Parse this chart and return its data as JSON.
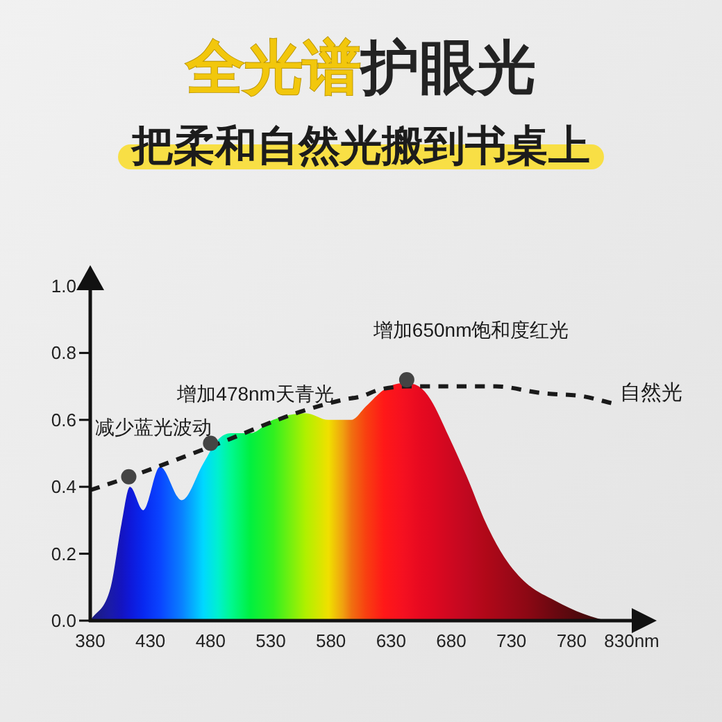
{
  "chart_data": {
    "type": "area",
    "title": "全光谱护眼光",
    "subtitle": "把柔和自然光搬到书桌上",
    "xlim": [
      380,
      830
    ],
    "xticks": [
      380,
      430,
      480,
      530,
      580,
      630,
      680,
      730,
      780,
      {
        "value": 830,
        "label": "830nm"
      }
    ],
    "ylim": [
      0,
      1
    ],
    "yticks": [
      {
        "value": 0,
        "label": "0.0"
      },
      0.2,
      0.4,
      0.6,
      0.8,
      {
        "value": 1,
        "label": "1.0"
      }
    ],
    "grid": false,
    "legend": false,
    "series": [
      {
        "x": [
          380,
          397,
          406,
          413,
          424,
          438,
          456,
          474,
          486,
          497,
          513,
          532,
          559,
          578,
          590,
          597,
          609,
          624,
          640,
          653,
          663,
          678,
          693,
          709,
          724,
          743,
          766,
          790,
          813,
          820
        ],
        "values": [
          0,
          0.1,
          0.29,
          0.4,
          0.33,
          0.46,
          0.36,
          0.47,
          0.54,
          0.56,
          0.56,
          0.6,
          0.62,
          0.6,
          0.6,
          0.6,
          0.64,
          0.69,
          0.71,
          0.7,
          0.66,
          0.55,
          0.43,
          0.29,
          0.19,
          0.11,
          0.06,
          0.02,
          0,
          0
        ],
        "colors": [
          "#1b1b7a",
          "#1a1aa8",
          "#1414c0",
          "#0f18d8",
          "#0828f0",
          "#0a44ff",
          "#0a80ff",
          "#00d8ff",
          "#00f0d0",
          "#00f890",
          "#00f040",
          "#30f020",
          "#b0f000",
          "#f0e000",
          "#f0a010",
          "#f07010",
          "#f84010",
          "#ff1818",
          "#f51020",
          "#e80a20",
          "#e00820",
          "#d00820",
          "#c00820",
          "#b00818",
          "#a00818",
          "#8c0814",
          "#6a0810",
          "#4a0a0c",
          "#301010",
          "#2a1010"
        ]
      },
      {
        "type": "line",
        "name": "自然光",
        "color": "#1a1a1a",
        "line_style": "dashed",
        "x": [
          380,
          413,
          480,
          551,
          590,
          605,
          620,
          643,
          678,
          717,
          755,
          790,
          813
        ],
        "values": [
          0.39,
          0.43,
          0.52,
          0.62,
          0.66,
          0.67,
          0.69,
          0.7,
          0.7,
          0.7,
          0.68,
          0.67,
          0.65
        ]
      },
      {
        "type": "scatter",
        "color": "#444444",
        "marker": "circle",
        "x": [
          412,
          480,
          643
        ],
        "values": [
          0.43,
          0.53,
          0.72
        ]
      }
    ],
    "annotations": [
      {
        "text": "减少蓝光波动",
        "x": 412,
        "y": 0.43
      },
      {
        "text": "增加478nm天青光",
        "x": 480,
        "y": 0.53
      },
      {
        "text": "增加650nm饱和度红光",
        "x": 643,
        "y": 0.72
      }
    ]
  }
}
